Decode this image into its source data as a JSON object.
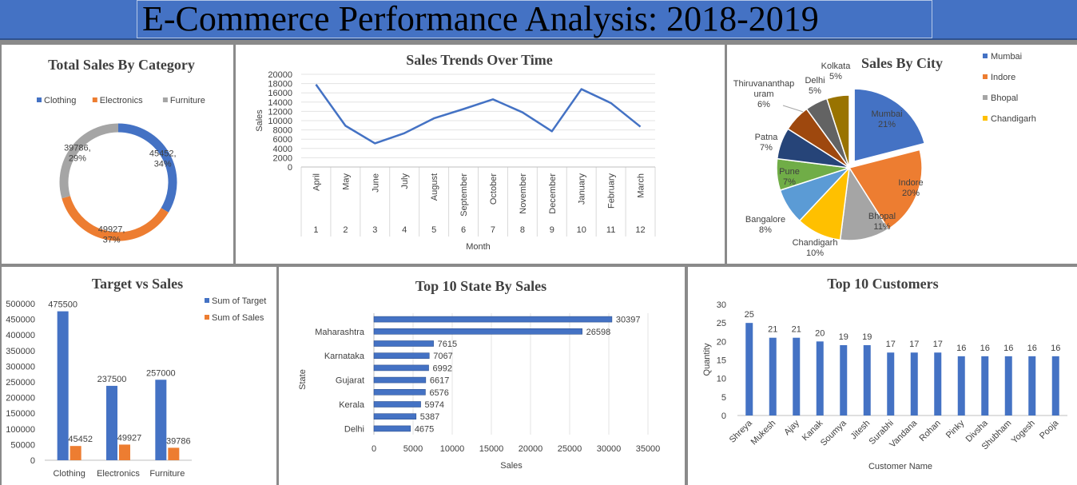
{
  "header": {
    "title": "E-Commerce Performance Analysis: 2018-2019"
  },
  "colors": {
    "blue": "#4472C4",
    "orange": "#ED7D31",
    "gray": "#A5A5A5",
    "gold": "#FFC000",
    "lightblue": "#5B9BD5",
    "green": "#70AD47",
    "navy": "#264478",
    "brown": "#9E480E",
    "darkgray": "#636363",
    "olive": "#997300"
  },
  "chart_data": [
    {
      "id": "category",
      "type": "pie",
      "subtype": "donut",
      "title": "Total Sales By Category",
      "legend_position": "top",
      "slices": [
        {
          "name": "Clothing",
          "value": 45452,
          "label": "45452,",
          "pct": "34%",
          "color": "#4472C4"
        },
        {
          "name": "Electronics",
          "value": 49927,
          "label": "49927,",
          "pct": "37%",
          "color": "#ED7D31"
        },
        {
          "name": "Furniture",
          "value": 39786,
          "label": "39786,",
          "pct": "29%",
          "color": "#A5A5A5"
        }
      ]
    },
    {
      "id": "trend",
      "type": "line",
      "title": "Sales Trends Over Time",
      "xlabel": "Month",
      "ylabel": "Sales",
      "ylim": [
        0,
        20000
      ],
      "yticks": [
        "0",
        "2000",
        "4000",
        "6000",
        "8000",
        "10000",
        "12000",
        "14000",
        "16000",
        "18000",
        "20000"
      ],
      "grid": true,
      "categories": [
        "April",
        "May",
        "June",
        "July",
        "August",
        "September",
        "October",
        "November",
        "December",
        "January",
        "February",
        "March"
      ],
      "month_numbers": [
        "1",
        "2",
        "3",
        "4",
        "5",
        "6",
        "7",
        "8",
        "9",
        "10",
        "11",
        "12"
      ],
      "values": [
        17800,
        8900,
        5100,
        7300,
        10500,
        12500,
        14600,
        11800,
        7700,
        16800,
        13800,
        8700
      ],
      "color": "#4472C4"
    },
    {
      "id": "city",
      "type": "pie",
      "title": "Sales By City",
      "legend_position": "right",
      "legend": [
        "Mumbai",
        "Indore",
        "Bhopal",
        "Chandigarh"
      ],
      "slices": [
        {
          "name": "Mumbai",
          "pct_value": 21,
          "label": "Mumbai",
          "pct": "21%",
          "color": "#4472C4",
          "exploded": true
        },
        {
          "name": "Indore",
          "pct_value": 20,
          "label": "Indore",
          "pct": "20%",
          "color": "#ED7D31"
        },
        {
          "name": "Bhopal",
          "pct_value": 11,
          "label": "Bhopal",
          "pct": "11%",
          "color": "#A5A5A5"
        },
        {
          "name": "Chandigarh",
          "pct_value": 10,
          "label": "Chandigarh",
          "pct": "10%",
          "color": "#FFC000"
        },
        {
          "name": "Bangalore",
          "pct_value": 8,
          "label": "Bangalore",
          "pct": "8%",
          "color": "#5B9BD5"
        },
        {
          "name": "Pune",
          "pct_value": 7,
          "label": "Pune",
          "pct": "7%",
          "color": "#70AD47"
        },
        {
          "name": "Patna",
          "pct_value": 7,
          "label": "Patna",
          "pct": "7%",
          "color": "#264478"
        },
        {
          "name": "Thiruvananthapuram",
          "pct_value": 6,
          "label": "Thiruvananthap|uram",
          "pct": "6%",
          "color": "#9E480E"
        },
        {
          "name": "Delhi",
          "pct_value": 5,
          "label": "Delhi",
          "pct": "5%",
          "color": "#636363"
        },
        {
          "name": "Kolkata",
          "pct_value": 5,
          "label": "Kolkata",
          "pct": "5%",
          "color": "#997300"
        }
      ]
    },
    {
      "id": "target",
      "type": "bar",
      "title": "Target vs Sales",
      "ylim": [
        0,
        500000
      ],
      "yticks": [
        "0",
        "50000",
        "100000",
        "150000",
        "200000",
        "250000",
        "300000",
        "350000",
        "400000",
        "450000",
        "500000"
      ],
      "categories": [
        "Clothing",
        "Electronics",
        "Furniture"
      ],
      "series": [
        {
          "name": "Sum of Target",
          "values": [
            475500,
            237500,
            257000
          ],
          "labels": [
            "475500",
            "237500",
            "257000"
          ],
          "color": "#4472C4"
        },
        {
          "name": "Sum of Sales",
          "values": [
            45452,
            49927,
            39786
          ],
          "labels": [
            "45452",
            "49927",
            "39786"
          ],
          "color": "#ED7D31"
        }
      ]
    },
    {
      "id": "states",
      "type": "bar",
      "orientation": "horizontal",
      "title": "Top 10 State By Sales",
      "xlabel": "Sales",
      "ylabel": "State",
      "xlim": [
        0,
        35000
      ],
      "xticks": [
        "0",
        "5000",
        "10000",
        "15000",
        "20000",
        "25000",
        "30000",
        "35000"
      ],
      "category_labels": [
        "",
        "Maharashtra",
        "",
        "Karnataka",
        "",
        "Gujarat",
        "",
        "Kerala",
        "",
        "Delhi"
      ],
      "values": [
        30397,
        26598,
        7615,
        7067,
        6992,
        6617,
        6576,
        5974,
        5387,
        4675
      ],
      "labels": [
        "30397",
        "26598",
        "7615",
        "7067",
        "6992",
        "6617",
        "6576",
        "5974",
        "5387",
        "4675"
      ],
      "color": "#4472C4"
    },
    {
      "id": "customers",
      "type": "bar",
      "title": "Top 10 Customers",
      "xlabel": "Customer Name",
      "ylabel": "Quantity",
      "ylim": [
        0,
        30
      ],
      "yticks": [
        "0",
        "5",
        "10",
        "15",
        "20",
        "25",
        "30"
      ],
      "categories": [
        "Shreya",
        "Mukesh",
        "Ajay",
        "Kanak",
        "Soumya",
        "Jitesh",
        "Surabhi",
        "Vandana",
        "Rohan",
        "Pinky",
        "Divsha",
        "Shubham",
        "Yogesh",
        "Pooja"
      ],
      "values": [
        25,
        21,
        21,
        20,
        19,
        19,
        17,
        17,
        17,
        16,
        16,
        16,
        16,
        16
      ],
      "labels": [
        "25",
        "21",
        "21",
        "20",
        "19",
        "19",
        "17",
        "17",
        "17",
        "16",
        "16",
        "16",
        "16",
        "16"
      ],
      "color": "#4472C4"
    }
  ]
}
